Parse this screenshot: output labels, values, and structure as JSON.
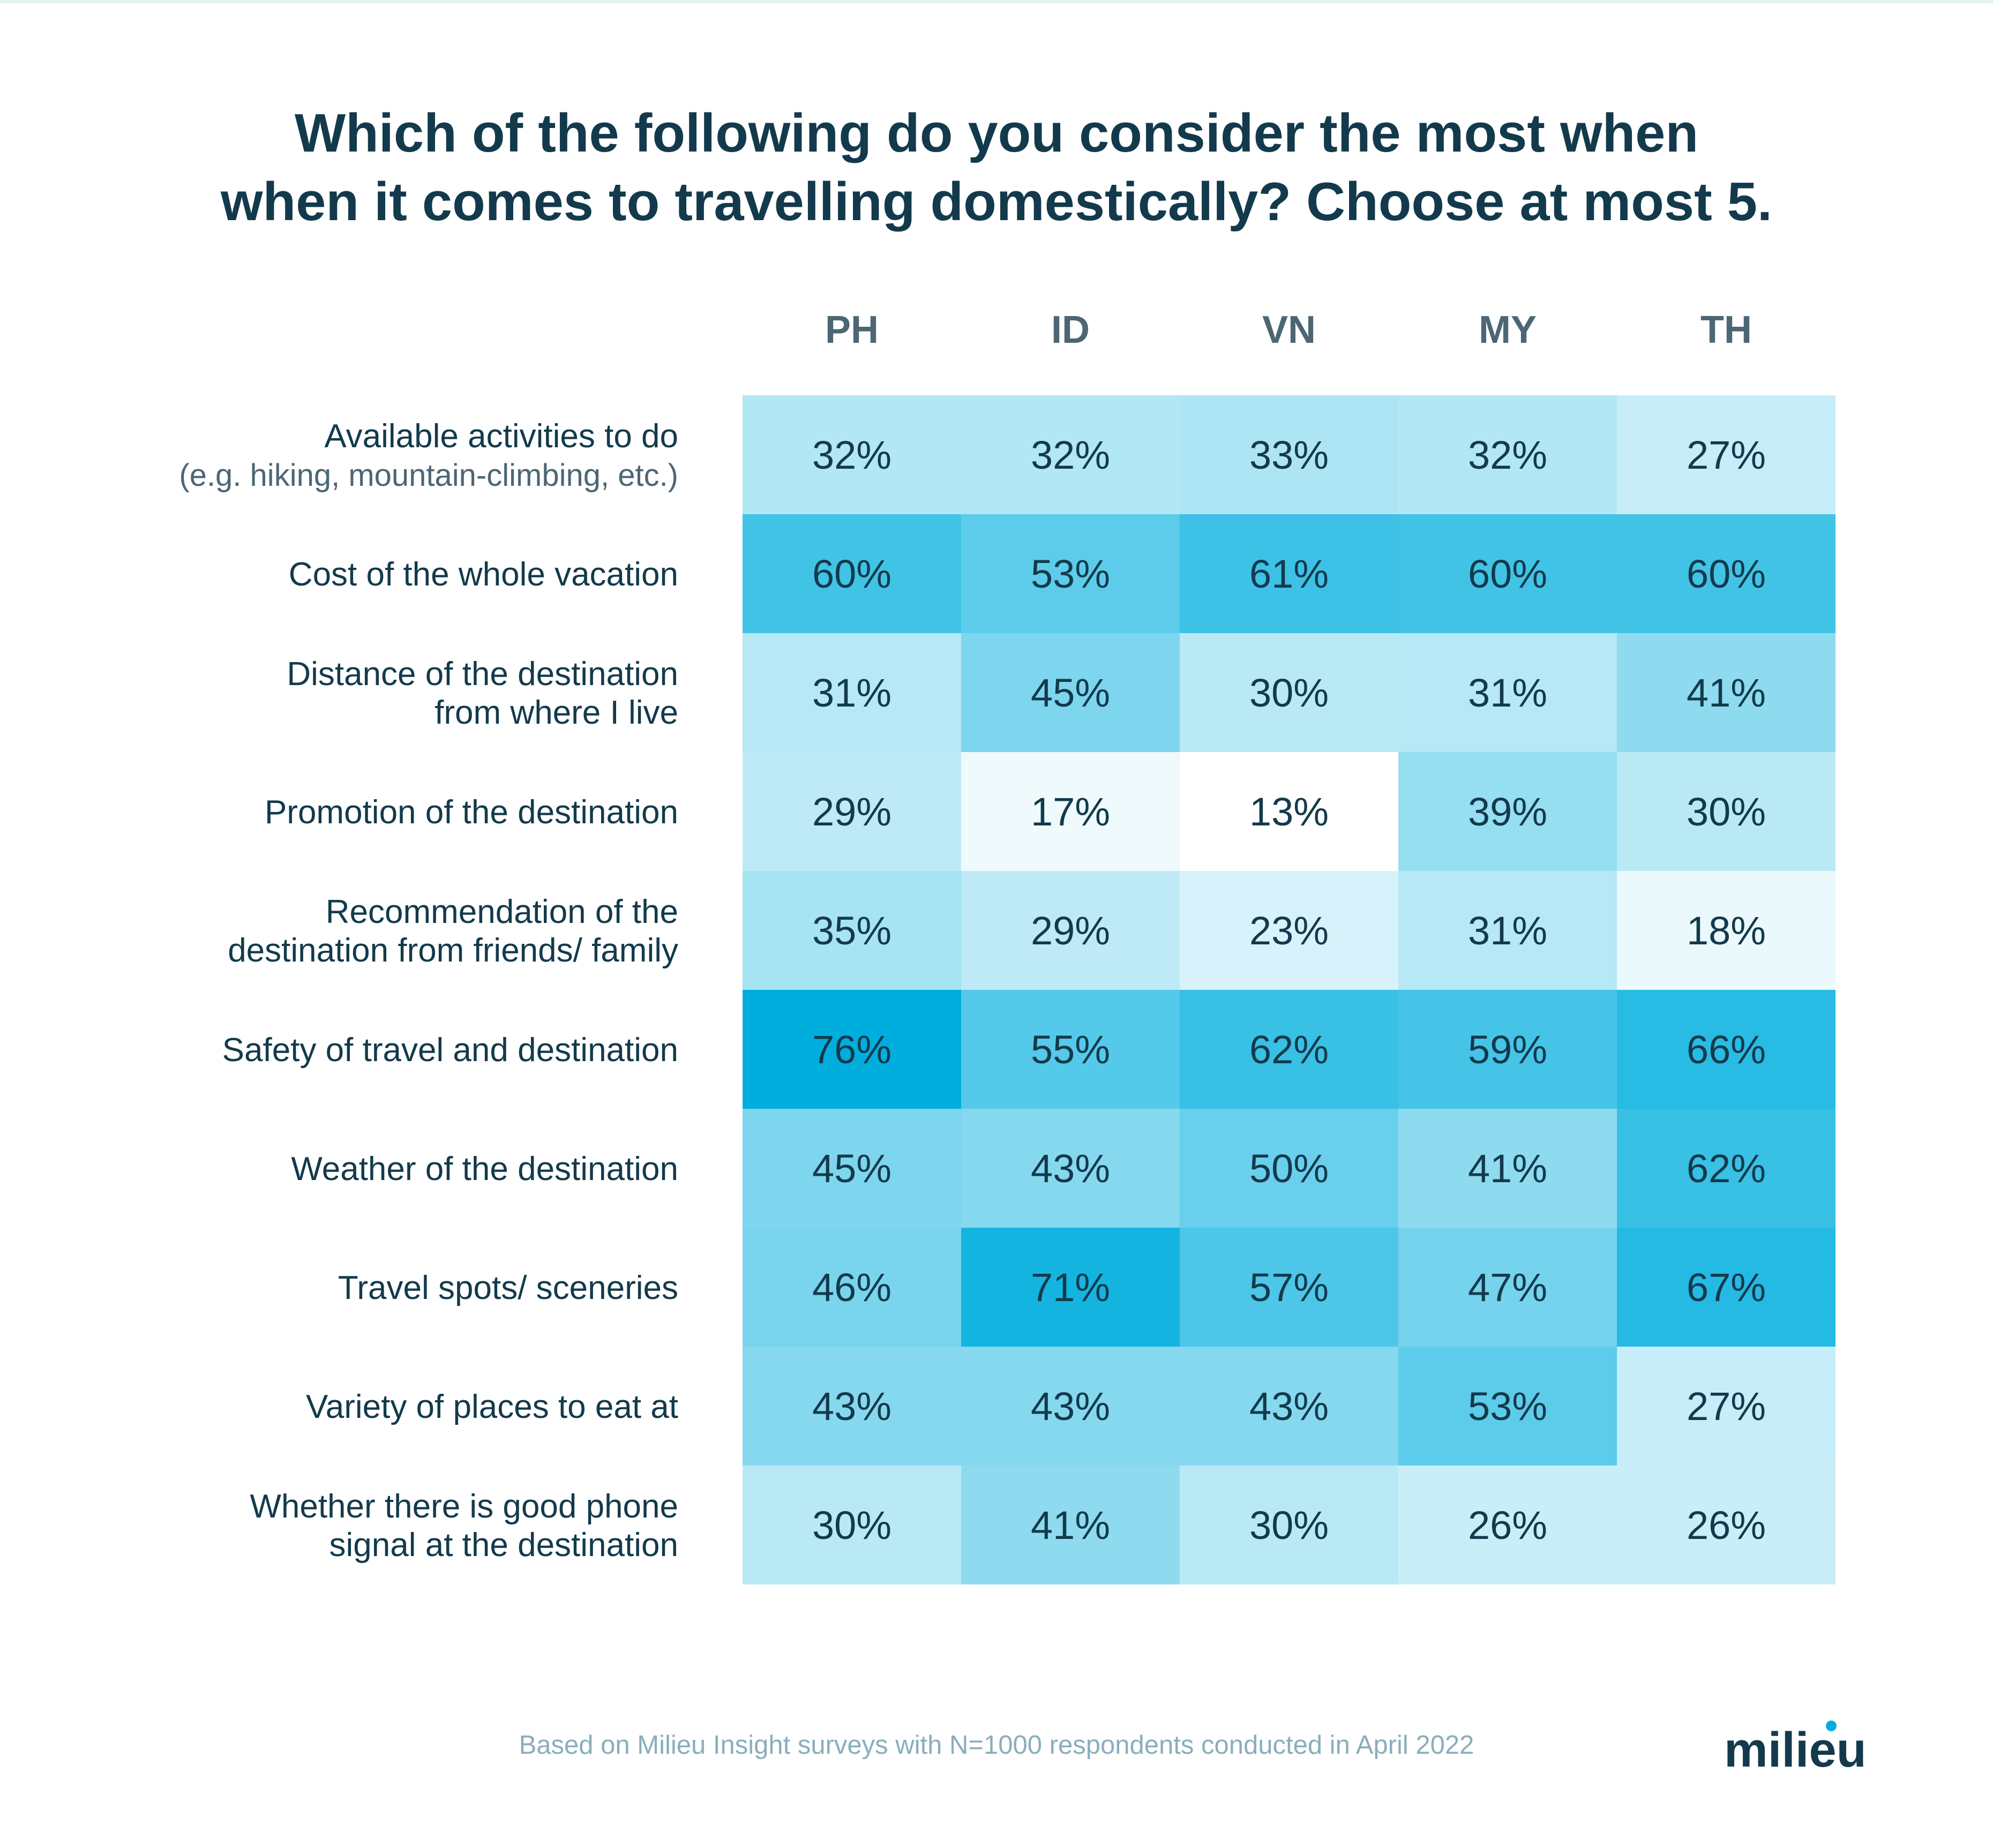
{
  "title": {
    "line1": "Which of the following do you consider the most when",
    "line2": "when it comes to travelling domestically? Choose at most 5."
  },
  "chart_data": {
    "type": "heatmap",
    "columns": [
      "PH",
      "ID",
      "VN",
      "MY",
      "TH"
    ],
    "rows": [
      {
        "label": [
          "Available activities to do"
        ],
        "sublabel": "(e.g. hiking, mountain-climbing, etc.)",
        "values": [
          32,
          32,
          33,
          32,
          27
        ]
      },
      {
        "label": [
          "Cost of the whole vacation"
        ],
        "values": [
          60,
          53,
          61,
          60,
          60
        ]
      },
      {
        "label": [
          "Distance of the destination",
          "from where I live"
        ],
        "values": [
          31,
          45,
          30,
          31,
          41
        ]
      },
      {
        "label": [
          "Promotion of the destination"
        ],
        "values": [
          29,
          17,
          13,
          39,
          30
        ]
      },
      {
        "label": [
          "Recommendation of the",
          "destination from friends/ family"
        ],
        "values": [
          35,
          29,
          23,
          31,
          18
        ]
      },
      {
        "label": [
          "Safety of travel and destination"
        ],
        "values": [
          76,
          55,
          62,
          59,
          66
        ]
      },
      {
        "label": [
          "Weather of the destination"
        ],
        "values": [
          45,
          43,
          50,
          41,
          62
        ]
      },
      {
        "label": [
          "Travel spots/ sceneries"
        ],
        "values": [
          46,
          71,
          57,
          47,
          67
        ]
      },
      {
        "label": [
          "Variety of places to eat at"
        ],
        "values": [
          43,
          43,
          43,
          53,
          27
        ]
      },
      {
        "label": [
          "Whether there is good phone",
          "signal at the destination"
        ],
        "values": [
          30,
          41,
          30,
          26,
          26
        ]
      }
    ],
    "value_suffix": "%",
    "color_scale": {
      "low": "#ffffff",
      "high": "#00aede",
      "min": 13,
      "max": 76
    }
  },
  "footnote": "Based on Milieu Insight surveys with N=1000 respondents conducted in April 2022",
  "logo": {
    "text": "milieu",
    "dot_color": "#00aede",
    "text_color": "#133a4c"
  }
}
